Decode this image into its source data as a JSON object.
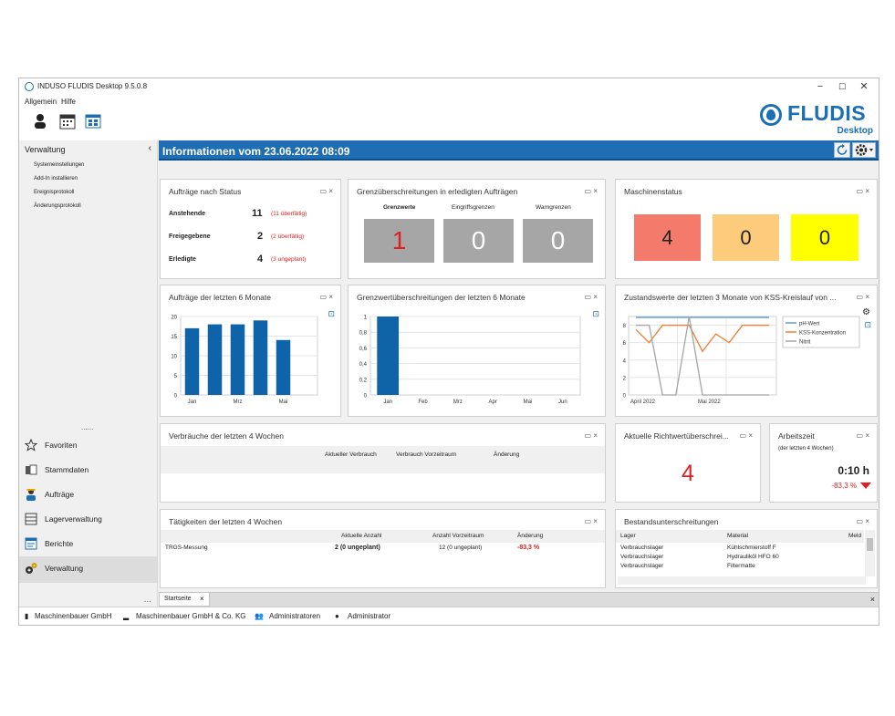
{
  "window": {
    "title": "INDUSO FLUDIS Desktop 9.5.0.8"
  },
  "menu": {
    "items": [
      "Allgemein",
      "Hilfe"
    ]
  },
  "logo": {
    "word": "FLUDIS",
    "sub": "Desktop"
  },
  "sidebar": {
    "heading": "Verwaltung",
    "links": [
      "Systemeinstellungen",
      "Add-In installieren",
      "Ereignisprotokoll",
      "Änderungsprotokoll"
    ],
    "dots": "......",
    "nav": [
      "Favoriten",
      "Stammdaten",
      "Aufträge",
      "Lagerverwaltung",
      "Berichte",
      "Verwaltung"
    ],
    "more": "..."
  },
  "infobar": {
    "title": "Informationen vom 23.06.2022 08:09"
  },
  "status_panel": {
    "title": "Aufträge nach Status",
    "rows": [
      {
        "label": "Anstehende",
        "count": "11",
        "note": "(11 überfällig)"
      },
      {
        "label": "Freigegebene",
        "count": "2",
        "note": "(2 überfällig)"
      },
      {
        "label": "Erledigte",
        "count": "4",
        "note": "(3 ungeplant)"
      }
    ]
  },
  "limits_panel": {
    "title": "Grenzüberschreitungen in erledigten Aufträgen",
    "tiles": [
      {
        "label": "Grenzwerte",
        "value": "1"
      },
      {
        "label": "Eingriffsgrenzen",
        "value": "0"
      },
      {
        "label": "Warngrenzen",
        "value": "0"
      }
    ]
  },
  "machine_panel": {
    "title": "Maschinenstatus",
    "tiles": [
      {
        "value": "4",
        "color": "#f47a6c"
      },
      {
        "value": "0",
        "color": "#fccb7b"
      },
      {
        "value": "0",
        "color": "#ffff00"
      }
    ]
  },
  "orders_chart_panel": {
    "title": "Aufträge der letzten 6 Monate"
  },
  "limits_chart_panel": {
    "title": "Grenzwertüberschreitungen der letzten 6 Monate"
  },
  "kss_chart_panel": {
    "title": "Zustandswerte der letzten 3 Monate von KSS-Kreislauf von ..."
  },
  "consumption_panel": {
    "title": "Verbräuche der letzten 4 Wochen",
    "headers": [
      "Aktueller Verbrauch",
      "Verbrauch Vorzeitraum",
      "Änderung"
    ]
  },
  "guideline_panel": {
    "title": "Aktuelle Richtwertüberschrei...",
    "value": "4"
  },
  "worktime_panel": {
    "title": "Arbeitszeit",
    "sub": "(der letzten 4 Wochen)",
    "value": "0:10 h",
    "change": "-83,3 %"
  },
  "activities_panel": {
    "title": "Tätigkeiten der letzten 4 Wochen",
    "headers": [
      "Aktuelle Anzahl",
      "Anzahl Vorzeitraum",
      "Änderung"
    ],
    "rows": [
      {
        "name": "TRGS-Messung",
        "current": "2 (0 ungeplant)",
        "previous": "12 (0 ungeplant)",
        "change": "-83,3 %"
      }
    ]
  },
  "stock_panel": {
    "title": "Bestandsunterschreitungen",
    "headers": [
      "Lager",
      "Material",
      "Meld"
    ],
    "rows": [
      {
        "lager": "Verbrauchslager",
        "material": "Kühlschmierstoff F"
      },
      {
        "lager": "Verbrauchslager",
        "material": "Hydrauliköl HFO 60"
      },
      {
        "lager": "Verbrauchslager",
        "material": "Filtermatte"
      }
    ]
  },
  "tabs": {
    "start": "Startseite",
    "close": "×"
  },
  "panel_ctl": "▭ ×",
  "statusbar": [
    "Maschinenbauer GmbH",
    "Maschinenbauer GmbH & Co. KG",
    "Administratoren",
    "Administrator"
  ],
  "chart_data": [
    {
      "type": "bar",
      "title": "Aufträge der letzten 6 Monate",
      "categories": [
        "Jan",
        "Feb",
        "Mrz",
        "Apr",
        "Mai",
        "Jun"
      ],
      "x_tick_labels": [
        "Jan",
        "Mrz",
        "Mai"
      ],
      "values": [
        17,
        18,
        18,
        19,
        14,
        0
      ],
      "ylim": [
        0,
        20
      ],
      "y_ticks": [
        "0",
        "5",
        "10",
        "15",
        "20"
      ],
      "color": "#0f63a8",
      "grid": true
    },
    {
      "type": "bar",
      "title": "Grenzwertüberschreitungen der letzten 6 Monate",
      "categories": [
        "Jan",
        "Feb",
        "Mrz",
        "Apr",
        "Mai",
        "Jun"
      ],
      "values": [
        1,
        0,
        0,
        0,
        0,
        0
      ],
      "ylim": [
        0,
        1
      ],
      "y_ticks": [
        "0",
        "0,2",
        "0,4",
        "0,6",
        "0,8",
        "1"
      ],
      "color": "#0f63a8",
      "grid": true
    },
    {
      "type": "line",
      "title": "Zustandswerte der letzten 3 Monate von KSS-Kreislauf von ...",
      "x_tick_labels": [
        "April 2022",
        "Mai 2022"
      ],
      "ylim": [
        0,
        9
      ],
      "y_ticks": [
        "0",
        "2",
        "4",
        "6",
        "8"
      ],
      "legend": "right",
      "grid": true,
      "series": [
        {
          "name": "pH-Wert",
          "color": "#5b9bd5",
          "values": [
            8.9,
            8.9,
            8.9,
            8.9,
            8.9,
            8.9,
            8.9,
            8.9,
            8.9,
            8.9,
            8.9
          ]
        },
        {
          "name": "KSS-Konzentration",
          "color": "#ed7d31",
          "values": [
            7.5,
            6.0,
            8.0,
            8.0,
            8.0,
            5.0,
            7.0,
            6.0,
            8.0,
            8.0,
            8.0
          ]
        },
        {
          "name": "Nitrit",
          "color": "#a5a5a5",
          "values": [
            8.0,
            8.0,
            0,
            0,
            9.0,
            0,
            0,
            0,
            0,
            0,
            0
          ]
        }
      ]
    }
  ]
}
